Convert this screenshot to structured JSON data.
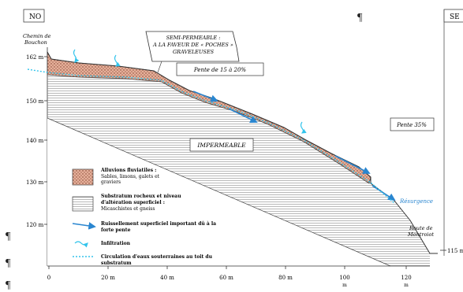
{
  "orientation": {
    "left": "NO",
    "right": "SE"
  },
  "pilcrow": "¶",
  "place_labels": {
    "chemin": [
      "Chemin de",
      "Bouchon"
    ],
    "route": [
      "Route de",
      "Montroiot"
    ]
  },
  "y_ticks": [
    "162 m",
    "150 m",
    "140 m",
    "130 m",
    "120 m",
    "115 m"
  ],
  "x_ticks": [
    "0",
    "20 m",
    "40 m",
    "60 m",
    "80 m",
    "100",
    "120"
  ],
  "x_unit": "m",
  "annotations": {
    "semi_permeable": [
      "SEMI-PERMEABLE :",
      "A LA FAVEUR DE « POCHES »",
      "GRAVELEUSES"
    ],
    "pente_1": "Pente de 15 à 20%",
    "pente_2": "Pente 35%",
    "impermeable": "IMPERMEABLE",
    "resurgence": "Résurgence"
  },
  "legend": {
    "alluvions": {
      "title": "Alluvions fluviatiles :",
      "lines": [
        "Sables, limons, galets et",
        "graviers"
      ]
    },
    "substratum": {
      "title": "Substratum rocheux et niveau",
      "lines": [
        "d'altération superficiel :",
        "Micaschistes et gneiss"
      ]
    },
    "ruissellement": [
      "Ruissellement superficiel important dû à la",
      "forte pente"
    ],
    "infiltration": "Infiltration",
    "circulation": [
      "Circulation d'eaux souterraines au toit du",
      "substratum"
    ]
  },
  "colors": {
    "alluvium": "#e8b4a0",
    "water": "#2a86d0",
    "infiltration": "#33c4ec",
    "hatch": "#555555"
  }
}
